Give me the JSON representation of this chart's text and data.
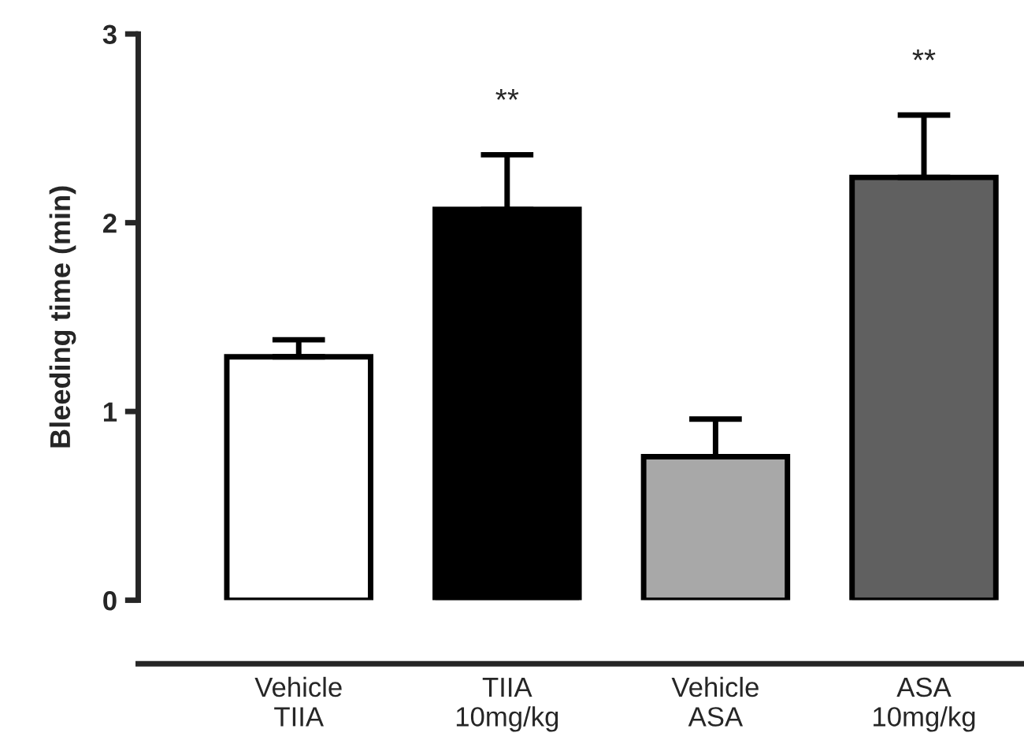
{
  "chart_data": {
    "type": "bar",
    "ylabel": "Bleeding time (min)",
    "categories": [
      "Vehicle\nTIIA",
      "TIIA\n10mg/kg",
      "Vehicle\nASA",
      "ASA\n10mg/kg"
    ],
    "values": [
      1.29,
      2.07,
      0.76,
      2.24
    ],
    "errors": [
      [
        1.29,
        1.38
      ],
      [
        2.07,
        2.36
      ],
      [
        0.76,
        0.96
      ],
      [
        2.24,
        2.57
      ]
    ],
    "colors": [
      "#ffffff",
      "#000000",
      "#a8a8a8",
      "#606060"
    ],
    "ylim": [
      0,
      3
    ],
    "yticks": [
      0,
      1,
      2,
      3
    ],
    "grid": false,
    "legend": false,
    "annotations": [
      "**",
      "**"
    ]
  }
}
